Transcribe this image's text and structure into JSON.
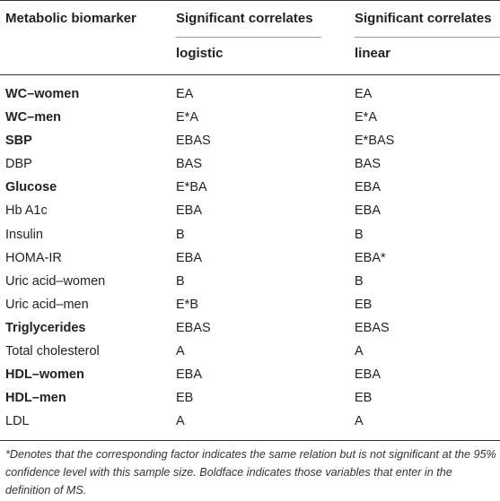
{
  "header": {
    "biomarker": "Metabolic biomarker",
    "sig_logistic": "Significant correlates",
    "sig_linear": "Significant correlates",
    "logistic": "logistic",
    "linear": "linear"
  },
  "rows": [
    {
      "name": "WC–women",
      "logistic": "EA",
      "linear": "EA",
      "bold": true
    },
    {
      "name": "WC–men",
      "logistic": "E*A",
      "linear": "E*A",
      "bold": true
    },
    {
      "name": "SBP",
      "logistic": "EBAS",
      "linear": "E*BAS",
      "bold": true
    },
    {
      "name": "DBP",
      "logistic": "BAS",
      "linear": "BAS",
      "bold": false
    },
    {
      "name": "Glucose",
      "logistic": "E*BA",
      "linear": "EBA",
      "bold": true
    },
    {
      "name": "Hb A1c",
      "logistic": "EBA",
      "linear": "EBA",
      "bold": false
    },
    {
      "name": "Insulin",
      "logistic": "B",
      "linear": "B",
      "bold": false
    },
    {
      "name": "HOMA-IR",
      "logistic": "EBA",
      "linear": "EBA*",
      "bold": false
    },
    {
      "name": "Uric acid–women",
      "logistic": "B",
      "linear": "B",
      "bold": false
    },
    {
      "name": "Uric acid–men",
      "logistic": "E*B",
      "linear": "EB",
      "bold": false
    },
    {
      "name": "Triglycerides",
      "logistic": "EBAS",
      "linear": "EBAS",
      "bold": true
    },
    {
      "name": "Total cholesterol",
      "logistic": "A",
      "linear": "A",
      "bold": false
    },
    {
      "name": "HDL–women",
      "logistic": "EBA",
      "linear": "EBA",
      "bold": true
    },
    {
      "name": "HDL–men",
      "logistic": "EB",
      "linear": "EB",
      "bold": true
    },
    {
      "name": "LDL",
      "logistic": "A",
      "linear": "A",
      "bold": false
    }
  ],
  "footnote": "*Denotes that the corresponding factor indicates the same relation but is not significant at the 95% confidence level with this sample size. Boldface indicates those variables that enter in the definition of MS."
}
